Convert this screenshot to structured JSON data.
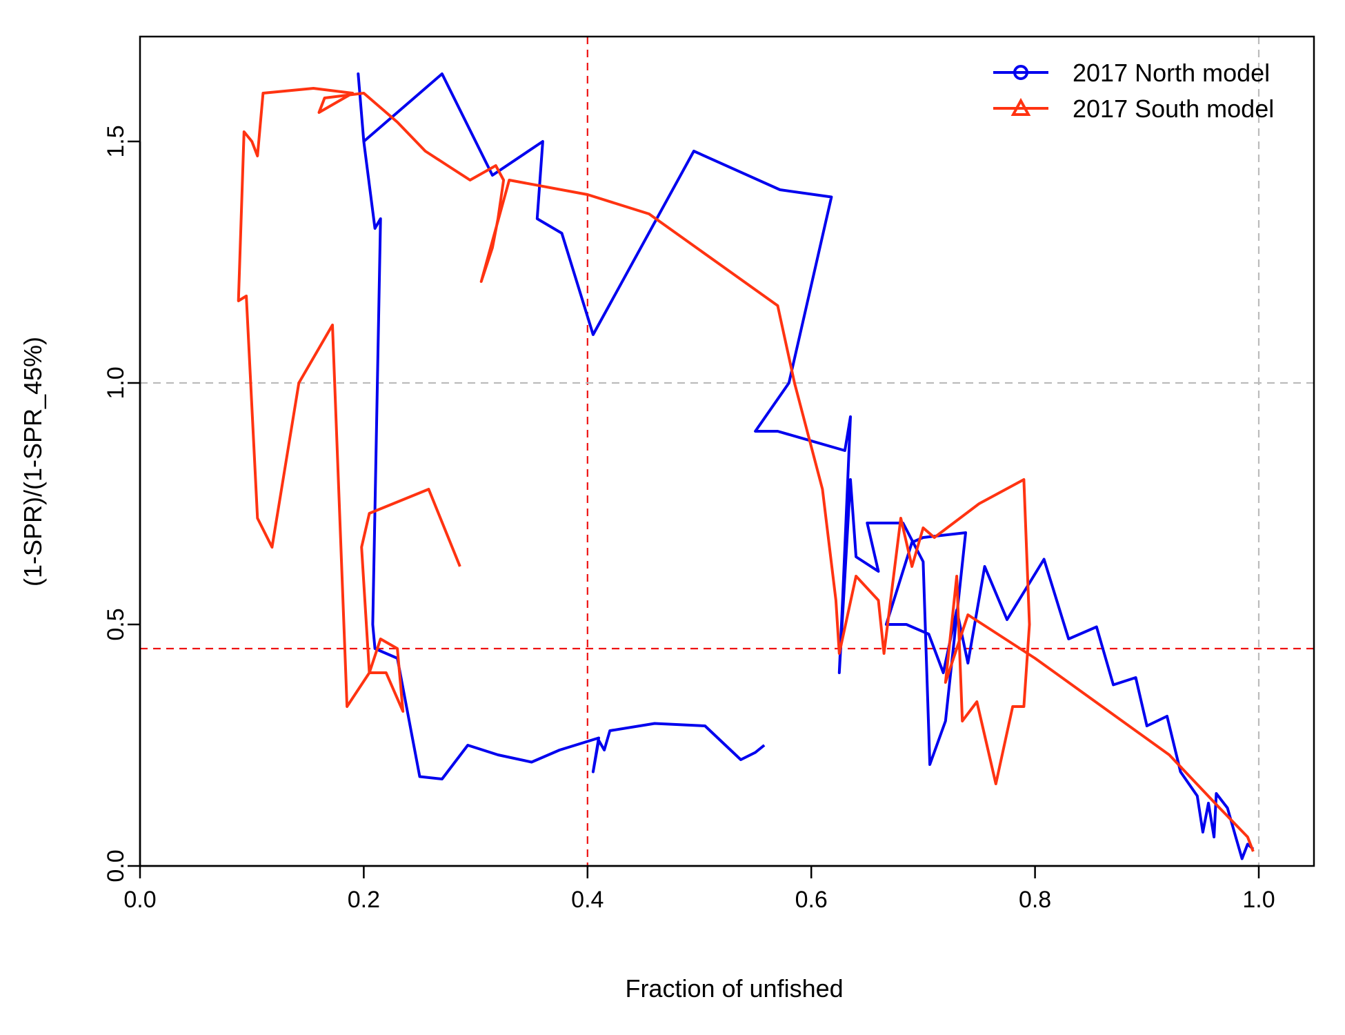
{
  "chart_data": {
    "type": "line",
    "title": "",
    "xlabel": "Fraction of unfished",
    "ylabel": "(1-SPR)/(1-SPR_45%)",
    "xlim": [
      0.0,
      1.05
    ],
    "ylim": [
      0.0,
      1.7
    ],
    "xticks": [
      0.0,
      0.2,
      0.4,
      0.6,
      0.8,
      1.0
    ],
    "yticks": [
      0.0,
      0.5,
      1.0,
      1.5
    ],
    "xtick_labels": [
      "0.0",
      "0.2",
      "0.4",
      "0.6",
      "0.8",
      "1.0"
    ],
    "ytick_labels": [
      "0.0",
      "0.5",
      "1.0",
      "1.5"
    ],
    "grid": false,
    "legend_position": "top-right",
    "reference_lines": [
      {
        "axis": "x",
        "value": 0.4,
        "color": "#ee1111",
        "style": "dashed"
      },
      {
        "axis": "y",
        "value": 0.45,
        "color": "#ee1111",
        "style": "dashed"
      },
      {
        "axis": "x",
        "value": 1.0,
        "color": "#bbbbbb",
        "style": "dashed"
      },
      {
        "axis": "y",
        "value": 1.0,
        "color": "#bbbbbb",
        "style": "dashed"
      }
    ],
    "series": [
      {
        "name": "2017 North model",
        "color": "#0000ee",
        "marker": "circle",
        "points": [
          [
            0.558,
            0.25
          ],
          [
            0.55,
            0.235
          ],
          [
            0.537,
            0.22
          ],
          [
            0.505,
            0.29
          ],
          [
            0.46,
            0.295
          ],
          [
            0.42,
            0.28
          ],
          [
            0.415,
            0.24
          ],
          [
            0.41,
            0.26
          ],
          [
            0.405,
            0.195
          ],
          [
            0.41,
            0.265
          ],
          [
            0.375,
            0.24
          ],
          [
            0.35,
            0.215
          ],
          [
            0.32,
            0.23
          ],
          [
            0.293,
            0.25
          ],
          [
            0.27,
            0.18
          ],
          [
            0.25,
            0.185
          ],
          [
            0.23,
            0.43
          ],
          [
            0.21,
            0.45
          ],
          [
            0.208,
            0.5
          ],
          [
            0.215,
            1.34
          ],
          [
            0.21,
            1.32
          ],
          [
            0.2,
            1.5
          ],
          [
            0.195,
            1.64
          ],
          [
            0.2,
            1.5
          ],
          [
            0.27,
            1.64
          ],
          [
            0.315,
            1.43
          ],
          [
            0.36,
            1.5
          ],
          [
            0.355,
            1.34
          ],
          [
            0.377,
            1.31
          ],
          [
            0.405,
            1.1
          ],
          [
            0.495,
            1.48
          ],
          [
            0.572,
            1.4
          ],
          [
            0.618,
            1.385
          ],
          [
            0.58,
            1.0
          ],
          [
            0.55,
            0.9
          ],
          [
            0.57,
            0.9
          ],
          [
            0.63,
            0.86
          ],
          [
            0.635,
            0.93
          ],
          [
            0.628,
            0.55
          ],
          [
            0.625,
            0.4
          ],
          [
            0.635,
            0.8
          ],
          [
            0.64,
            0.64
          ],
          [
            0.66,
            0.61
          ],
          [
            0.65,
            0.71
          ],
          [
            0.682,
            0.71
          ],
          [
            0.7,
            0.63
          ],
          [
            0.706,
            0.21
          ],
          [
            0.72,
            0.3
          ],
          [
            0.738,
            0.69
          ],
          [
            0.7,
            0.68
          ],
          [
            0.69,
            0.67
          ],
          [
            0.667,
            0.5
          ],
          [
            0.685,
            0.5
          ],
          [
            0.705,
            0.48
          ],
          [
            0.718,
            0.4
          ],
          [
            0.73,
            0.53
          ],
          [
            0.74,
            0.42
          ],
          [
            0.755,
            0.62
          ],
          [
            0.775,
            0.51
          ],
          [
            0.808,
            0.635
          ],
          [
            0.83,
            0.47
          ],
          [
            0.855,
            0.495
          ],
          [
            0.87,
            0.375
          ],
          [
            0.89,
            0.39
          ],
          [
            0.9,
            0.29
          ],
          [
            0.918,
            0.31
          ],
          [
            0.93,
            0.195
          ],
          [
            0.945,
            0.145
          ],
          [
            0.95,
            0.07
          ],
          [
            0.955,
            0.13
          ],
          [
            0.96,
            0.06
          ],
          [
            0.962,
            0.15
          ],
          [
            0.972,
            0.12
          ],
          [
            0.98,
            0.055
          ],
          [
            0.985,
            0.015
          ],
          [
            0.99,
            0.045
          ],
          [
            0.995,
            0.035
          ]
        ]
      },
      {
        "name": "2017 South model",
        "color": "#ff3311",
        "marker": "triangle",
        "points": [
          [
            0.286,
            0.62
          ],
          [
            0.258,
            0.78
          ],
          [
            0.205,
            0.73
          ],
          [
            0.198,
            0.66
          ],
          [
            0.205,
            0.4
          ],
          [
            0.215,
            0.47
          ],
          [
            0.23,
            0.45
          ],
          [
            0.235,
            0.32
          ],
          [
            0.22,
            0.4
          ],
          [
            0.205,
            0.4
          ],
          [
            0.185,
            0.33
          ],
          [
            0.172,
            1.12
          ],
          [
            0.142,
            1.0
          ],
          [
            0.118,
            0.66
          ],
          [
            0.105,
            0.72
          ],
          [
            0.095,
            1.18
          ],
          [
            0.088,
            1.17
          ],
          [
            0.093,
            1.52
          ],
          [
            0.1,
            1.5
          ],
          [
            0.105,
            1.47
          ],
          [
            0.11,
            1.6
          ],
          [
            0.155,
            1.61
          ],
          [
            0.19,
            1.6
          ],
          [
            0.175,
            1.58
          ],
          [
            0.16,
            1.56
          ],
          [
            0.165,
            1.59
          ],
          [
            0.2,
            1.6
          ],
          [
            0.23,
            1.54
          ],
          [
            0.255,
            1.48
          ],
          [
            0.275,
            1.45
          ],
          [
            0.295,
            1.42
          ],
          [
            0.318,
            1.45
          ],
          [
            0.325,
            1.42
          ],
          [
            0.32,
            1.34
          ],
          [
            0.315,
            1.28
          ],
          [
            0.305,
            1.21
          ],
          [
            0.33,
            1.42
          ],
          [
            0.4,
            1.39
          ],
          [
            0.455,
            1.35
          ],
          [
            0.57,
            1.16
          ],
          [
            0.585,
            1.0
          ],
          [
            0.61,
            0.78
          ],
          [
            0.622,
            0.55
          ],
          [
            0.625,
            0.44
          ],
          [
            0.64,
            0.6
          ],
          [
            0.66,
            0.55
          ],
          [
            0.665,
            0.44
          ],
          [
            0.68,
            0.72
          ],
          [
            0.69,
            0.62
          ],
          [
            0.7,
            0.7
          ],
          [
            0.71,
            0.68
          ],
          [
            0.75,
            0.75
          ],
          [
            0.79,
            0.8
          ],
          [
            0.795,
            0.5
          ],
          [
            0.79,
            0.33
          ],
          [
            0.78,
            0.33
          ],
          [
            0.765,
            0.17
          ],
          [
            0.748,
            0.34
          ],
          [
            0.735,
            0.3
          ],
          [
            0.73,
            0.6
          ],
          [
            0.72,
            0.38
          ],
          [
            0.74,
            0.52
          ],
          [
            0.8,
            0.43
          ],
          [
            0.86,
            0.33
          ],
          [
            0.92,
            0.23
          ],
          [
            0.965,
            0.12
          ],
          [
            0.99,
            0.06
          ],
          [
            0.995,
            0.03
          ]
        ]
      }
    ]
  }
}
